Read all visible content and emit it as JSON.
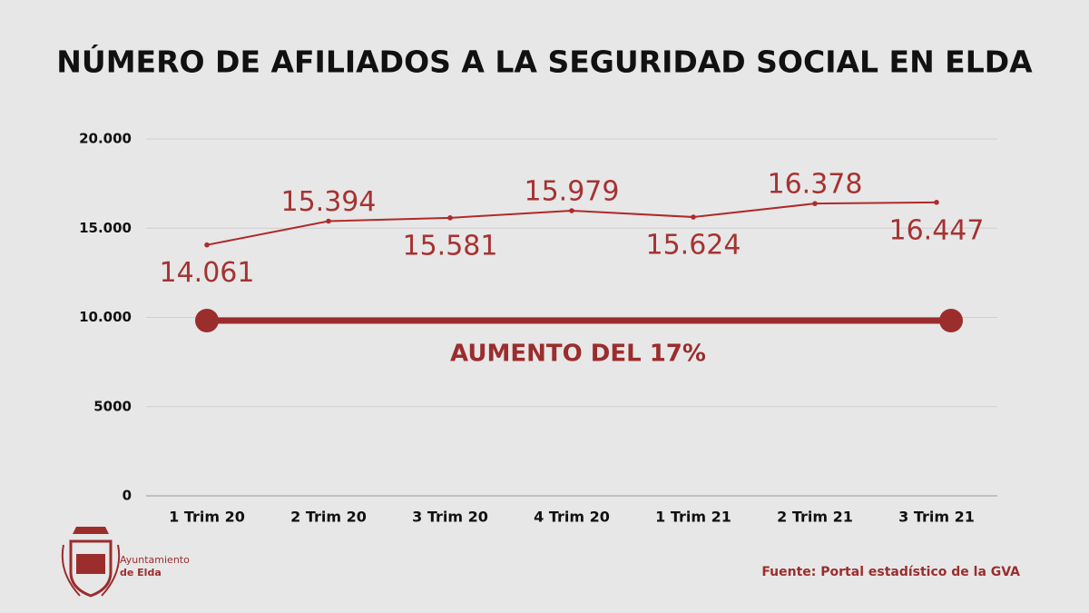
{
  "chart_data": {
    "type": "line",
    "title": "NÚMERO DE AFILIADOS A LA SEGURIDAD SOCIAL EN ELDA",
    "categories": [
      "1 Trim 20",
      "2 Trim 20",
      "3 Trim 20",
      "4 Trim 20",
      "1 Trim 21",
      "2 Trim 21",
      "3 Trim 21"
    ],
    "values": [
      14061,
      15394,
      15581,
      15979,
      15624,
      16378,
      16447
    ],
    "value_labels": [
      "14.061",
      "15.394",
      "15.581",
      "15.979",
      "15.624",
      "16.378",
      "16.447"
    ],
    "color": "#b02a2a",
    "ylim": [
      0,
      20000
    ],
    "yticks": [
      0,
      5000,
      {
        "value": 10000,
        "label": "10.000"
      },
      {
        "value": 15000,
        "label": "15.000"
      },
      {
        "value": 20000,
        "label": "20.000"
      }
    ],
    "grid": true,
    "annotation": "AUMENTO DEL 17%"
  },
  "source": "Fuente: Portal estadístico de la GVA",
  "logo": {
    "line1": "Ayuntamiento",
    "line2": "de Elda"
  }
}
